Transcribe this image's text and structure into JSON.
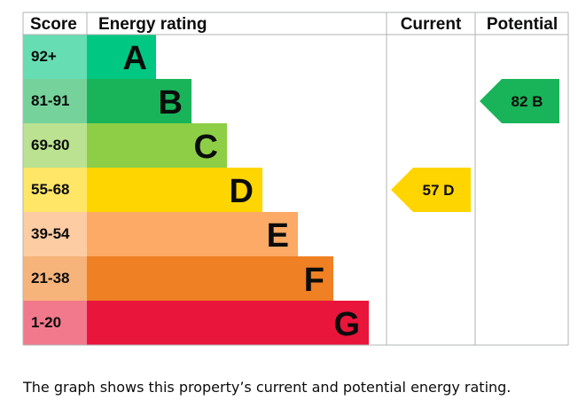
{
  "chart_data": {
    "type": "table",
    "headers": {
      "score": "Score",
      "energy_rating": "Energy rating",
      "current": "Current",
      "potential": "Potential"
    },
    "bands": [
      {
        "score": "1-20",
        "letter": "G",
        "color": "#e9153b",
        "text_color": "#0b0c0c",
        "score_bg": "#f2798c"
      },
      {
        "score": "21-38",
        "letter": "F",
        "color": "#ef8023",
        "text_color": "#0b0c0c",
        "score_bg": "#f6b37a"
      },
      {
        "score": "39-54",
        "letter": "E",
        "color": "#fcaa65",
        "text_color": "#0b0c0c",
        "score_bg": "#fdcca3"
      },
      {
        "score": "55-68",
        "letter": "D",
        "color": "#ffd500",
        "text_color": "#0b0c0c",
        "score_bg": "#ffe666"
      },
      {
        "score": "69-80",
        "letter": "C",
        "color": "#8dce46",
        "text_color": "#0b0c0c",
        "score_bg": "#bbe290"
      },
      {
        "score": "81-91",
        "letter": "B",
        "color": "#19b459",
        "text_color": "#0b0c0c",
        "score_bg": "#75d29b"
      },
      {
        "score": "92+",
        "letter": "A",
        "color": "#00c781",
        "text_color": "#0b0c0c",
        "score_bg": "#66ddb3"
      }
    ],
    "current": {
      "value": 57,
      "letter": "D",
      "label": "57 D",
      "color": "#ffd500"
    },
    "potential": {
      "value": 82,
      "letter": "B",
      "label": "82 B",
      "color": "#19b459"
    }
  },
  "caption": "The graph shows this property’s current and potential energy rating."
}
